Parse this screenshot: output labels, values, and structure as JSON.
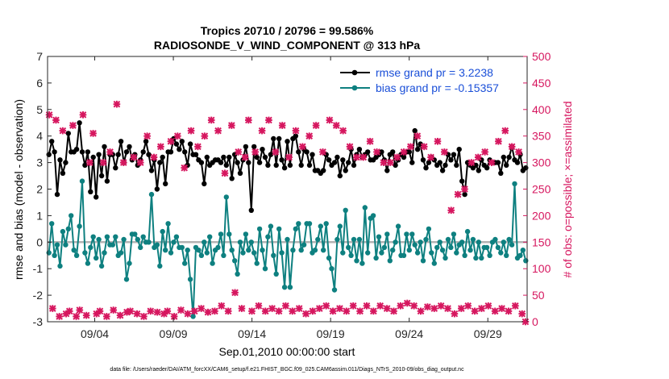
{
  "chart_data": {
    "type": "line",
    "title": "Tropics 20710 / 20796 = 99.586%",
    "subtitle": "RADIOSONDE_V_WIND_COMPONENT @ 313 hPa",
    "xlabel": "Sep.01,2010 00:00:00 start",
    "ylabel": "rmse and bias (model - observation)",
    "y2label": "# of obs: o=possible; ×=assimilated",
    "footer": "data file: /Users/raeder/DAI/ATM_forcXX/CAM6_setup/f.e21.FHIST_BGC.f09_025.CAM6assim.011/Diags_NTrS_2010-09/obs_diag_output.nc",
    "xlim": [
      0,
      30.5
    ],
    "ylim": [
      -3,
      7
    ],
    "y2lim": [
      0,
      500
    ],
    "x_ticks": [
      3,
      8,
      13,
      18,
      23,
      28
    ],
    "x_tick_labels": [
      "09/04",
      "09/09",
      "09/14",
      "09/19",
      "09/24",
      "09/29"
    ],
    "y_ticks": [
      -3,
      -2,
      -1,
      0,
      1,
      2,
      3,
      4,
      5,
      6,
      7
    ],
    "y2_ticks": [
      0,
      50,
      100,
      150,
      200,
      250,
      300,
      350,
      400,
      450,
      500
    ],
    "zero_line": 0,
    "colors": {
      "rmse": "#000000",
      "bias": "#0e8080",
      "obs": "#d6175f",
      "legend_text": "#1a4fd8",
      "zero": "#b3b3b3"
    },
    "series": [
      {
        "name": "rmse grand pr = 3.2238",
        "values": [
          3.3,
          3.8,
          3.4,
          1.8,
          3.1,
          2.6,
          3.0,
          4.1,
          3.4,
          3.4,
          3.5,
          4.5,
          3.4,
          2.9,
          3.4,
          1.9,
          3.2,
          1.7,
          3.3,
          2.5,
          3.6,
          2.3,
          3.3,
          3.3,
          2.8,
          3.3,
          3.8,
          3.0,
          3.4,
          3.6,
          3.1,
          3.3,
          2.9,
          3.1,
          3.4,
          3.8,
          3.3,
          2.7,
          3.1,
          2.0,
          3.0,
          3.2,
          2.2,
          3.4,
          3.4,
          3.9,
          3.7,
          3.5,
          3.8,
          3.4,
          2.9,
          3.7,
          3.3,
          3.3,
          3.1,
          3.0,
          2.2,
          3.2,
          2.9,
          3.0,
          3.1,
          3.1,
          3.0,
          3.2,
          2.9,
          3.2,
          2.4,
          3.3,
          3.0,
          2.6,
          3.1,
          3.6,
          3.0,
          1.2,
          3.6,
          3.2,
          3.0,
          3.5,
          3.2,
          2.9,
          3.3,
          3.9,
          2.9,
          3.9,
          3.1,
          2.8,
          3.8,
          2.9,
          3.9,
          4.0,
          3.4,
          2.9,
          3.5,
          3.4,
          2.9,
          3.3,
          2.7,
          2.7,
          2.6,
          2.7,
          3.3,
          3.1,
          2.9,
          3.0,
          3.2,
          2.5,
          3.1,
          2.7,
          3.0,
          3.5,
          2.9,
          3.3,
          3.5,
          3.2,
          3.3,
          3.4,
          3.1,
          3.1,
          3.2,
          3.3,
          3.4,
          3.1,
          2.7,
          3.3,
          3.4,
          2.9,
          3.1,
          3.3,
          3.2,
          3.4,
          3.4,
          3.0,
          4.2,
          3.5,
          3.7,
          3.1,
          2.8,
          3.0,
          3.2,
          3.1,
          2.9,
          3.0,
          2.7,
          2.9,
          3.3,
          3.1,
          3.3,
          2.9,
          3.5,
          2.3,
          1.8,
          3.0,
          2.9,
          2.8,
          2.9,
          2.7,
          3.1,
          2.9,
          2.8,
          3.1,
          3.0,
          3.0,
          3.0,
          2.6,
          3.2,
          2.9,
          3.2,
          3.6,
          3.1,
          3.0,
          3.3,
          2.7,
          2.8
        ],
        "marker": "dot"
      },
      {
        "name": "bias grand pr = -0.15357",
        "values": [
          -0.4,
          0.7,
          -0.5,
          -0.1,
          -0.9,
          0.4,
          -0.1,
          0.5,
          1.0,
          -0.3,
          -0.5,
          0.6,
          2.3,
          -0.4,
          -0.8,
          -0.2,
          0.2,
          -0.6,
          0.1,
          -0.9,
          -0.4,
          0.2,
          -0.1,
          -0.1,
          0.2,
          -0.5,
          -0.4,
          0.1,
          -1.4,
          -0.8,
          0.3,
          0.3,
          0.1,
          -0.2,
          0.2,
          0.0,
          0.0,
          1.8,
          -0.2,
          -0.1,
          -0.9,
          0.4,
          -0.3,
          0.7,
          -0.4,
          0.0,
          0.2,
          -0.2,
          -0.2,
          -0.8,
          -0.3,
          -1.4,
          -2.8,
          -0.2,
          -0.3,
          -0.5,
          0.0,
          -0.4,
          0.2,
          -0.8,
          -0.3,
          -0.2,
          0.3,
          -0.5,
          1.7,
          0.3,
          -0.3,
          -0.7,
          -1.2,
          0.0,
          -0.4,
          0.3,
          -0.3,
          0.0,
          -0.4,
          -0.8,
          0.5,
          -0.3,
          -1.0,
          0.2,
          0.6,
          -0.5,
          -1.2,
          0.5,
          -0.4,
          -1.7,
          0.1,
          -1.7,
          -0.3,
          0.5,
          0.7,
          -0.3,
          -0.1,
          0.7,
          0.7,
          -0.4,
          -0.3,
          0.1,
          0.6,
          -0.3,
          0.7,
          -0.6,
          -1.0,
          -1.8,
          0.1,
          0.6,
          -0.4,
          1.2,
          -0.2,
          -0.5,
          0.1,
          -0.7,
          0.1,
          -0.8,
          1.3,
          -0.4,
          0.9,
          1.0,
          -0.6,
          0.2,
          -0.4,
          -0.2,
          0.3,
          -0.7,
          -0.3,
          0.0,
          0.6,
          -0.5,
          -0.5,
          0.3,
          -0.3,
          0.3,
          -0.1,
          -0.4,
          0.0,
          -0.7,
          0.1,
          0.5,
          -0.4,
          -0.8,
          -0.2,
          0.0,
          -0.3,
          -0.6,
          0.1,
          -0.2,
          0.3,
          -0.4,
          -0.1,
          0.0,
          -0.5,
          0.4,
          -0.3,
          0.1,
          -0.6,
          0.0,
          -0.6,
          -0.2,
          -0.2,
          -0.5,
          0.0,
          0.1,
          -0.2,
          -0.4,
          0.0,
          -0.5,
          0.1,
          -0.1,
          2.2,
          -0.6,
          -0.5,
          -0.3,
          -0.7
        ],
        "marker": "dot"
      },
      {
        "name": "obs possible",
        "axis": "right",
        "values": [
          390,
          25,
          380,
          10,
          360,
          15,
          20,
          370,
          10,
          22,
          390,
          12,
          300,
          355,
          15,
          20,
          300,
          10,
          320,
          22,
          410,
          12,
          300,
          18,
          20,
          310,
          15,
          300,
          10,
          350,
          20,
          310,
          18,
          330,
          15,
          20,
          340,
          10,
          350,
          22,
          290,
          15,
          360,
          20,
          330,
          25,
          350,
          18,
          380,
          20,
          360,
          30,
          280,
          20,
          370,
          55,
          320,
          25,
          310,
          380,
          20,
          320,
          30,
          360,
          20,
          380,
          25,
          320,
          20,
          370,
          30,
          310,
          20,
          360,
          25,
          330,
          15,
          350,
          20,
          370,
          25,
          320,
          30,
          380,
          20,
          370,
          25,
          360,
          20,
          330,
          30,
          310,
          20,
          310,
          30,
          340,
          20,
          320,
          30,
          300,
          25,
          300,
          20,
          310,
          30,
          320,
          35,
          330,
          30,
          350,
          20,
          330,
          28,
          310,
          25,
          340,
          30,
          320,
          25,
          210,
          15,
          240,
          25,
          250,
          30,
          300,
          20,
          310,
          25,
          320,
          30,
          300,
          20,
          340,
          25,
          360,
          20,
          330,
          30,
          320,
          15,
          0
        ],
        "marker": "star"
      }
    ],
    "legend": [
      {
        "label": "rmse grand pr = 3.2238",
        "series": 0
      },
      {
        "label": "bias grand pr = -0.15357",
        "series": 1
      }
    ],
    "legend_position": "top-right",
    "grid": false
  }
}
